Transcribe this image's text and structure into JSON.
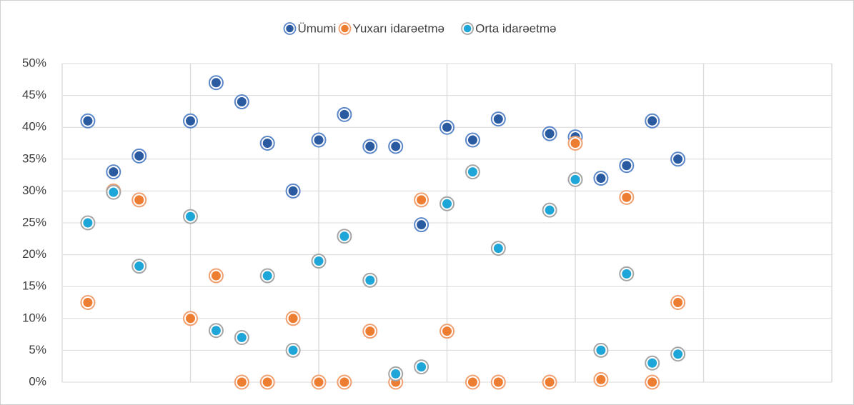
{
  "chart_data": {
    "type": "scatter",
    "legend": "top",
    "grid": true,
    "xlim": [
      0,
      30
    ],
    "xticks": [
      0,
      5,
      10,
      15,
      20,
      25,
      30
    ],
    "ylim": [
      0,
      50
    ],
    "yticks": [
      {
        "value": 0,
        "label": "0%"
      },
      {
        "value": 5,
        "label": "5%"
      },
      {
        "value": 10,
        "label": "10%"
      },
      {
        "value": 15,
        "label": "15%"
      },
      {
        "value": 20,
        "label": "20%"
      },
      {
        "value": 25,
        "label": "25%"
      },
      {
        "value": 30,
        "label": "30%"
      },
      {
        "value": 35,
        "label": "35%"
      },
      {
        "value": 40,
        "label": "40%"
      },
      {
        "value": 45,
        "label": "45%"
      },
      {
        "value": 50,
        "label": "50%"
      }
    ],
    "x": [
      1,
      2,
      3,
      5,
      6,
      7,
      8,
      9,
      10,
      11,
      12,
      13,
      14,
      15,
      16,
      17,
      19,
      20,
      21,
      22,
      23,
      24
    ],
    "series": [
      {
        "name": "Ümumi",
        "color": "#2a5aa0",
        "edgecolor": "#5b86c8",
        "values": [
          41,
          33,
          35.5,
          41,
          47,
          44,
          37.5,
          30,
          38,
          42,
          37,
          37,
          24.7,
          40,
          38,
          41.3,
          39,
          38.5,
          32,
          34,
          41,
          35
        ]
      },
      {
        "name": "Yuxarı idarəetmə",
        "color": "#ed7d31",
        "edgecolor": "#f0a070",
        "values": [
          12.5,
          30,
          28.6,
          10,
          16.7,
          0,
          0,
          10,
          0,
          0,
          8,
          0,
          28.6,
          8,
          0,
          0,
          0,
          37.5,
          0.4,
          29,
          0,
          12.5
        ]
      },
      {
        "name": "Orta idarəetmə",
        "color": "#1ea6d8",
        "edgecolor": "#a5a5a5",
        "values": [
          25,
          29.8,
          18.2,
          26,
          8.1,
          7,
          16.7,
          5,
          19,
          22.9,
          16,
          1.3,
          2.4,
          28,
          33,
          21,
          27,
          31.8,
          5,
          17,
          3,
          4.4
        ]
      }
    ]
  }
}
